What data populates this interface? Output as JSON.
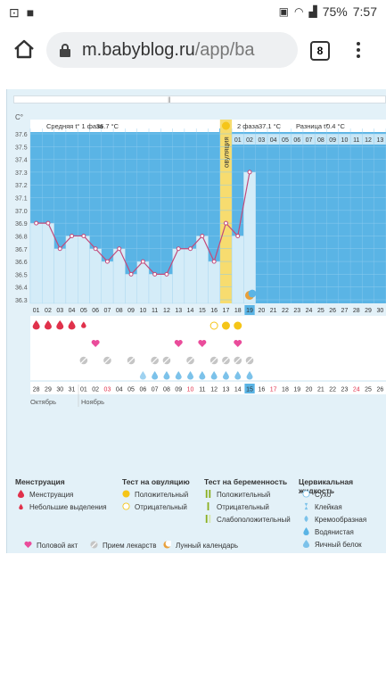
{
  "status": {
    "battery": "75%",
    "time": "7:57"
  },
  "browser": {
    "url_host": "m.babyblog.ru",
    "url_path": "/app/ba",
    "tab_count": "8"
  },
  "chart": {
    "y_unit": "C°",
    "phase1_label": "Средняя t° 1 фаза",
    "phase1_value": "36.7 °C",
    "phase2_label": "2 фаза",
    "phase2_value": "37.1 °C",
    "diff_label": "Разница t°",
    "diff_value": "0.4 °C",
    "ovulation_label": "овуляция",
    "month1": "Октябрь",
    "month2": "Ноябрь"
  },
  "chart_data": {
    "type": "line",
    "y_ticks": [
      "37.6",
      "37.5",
      "37.4",
      "37.3",
      "37.2",
      "37.1",
      "37.0",
      "36.9",
      "36.8",
      "36.7",
      "36.6",
      "36.5",
      "36.4",
      "36.3"
    ],
    "ylim": [
      36.3,
      37.6
    ],
    "cycle_days": [
      "01",
      "02",
      "03",
      "04",
      "05",
      "06",
      "07",
      "08",
      "09",
      "10",
      "11",
      "12",
      "13",
      "14",
      "15",
      "16",
      "17",
      "18",
      "19",
      "20",
      "21",
      "22",
      "23",
      "24",
      "25",
      "26",
      "27",
      "28",
      "29",
      "30"
    ],
    "phase2_days": [
      "01",
      "02",
      "03",
      "04",
      "05",
      "06",
      "07",
      "08",
      "09",
      "10",
      "11",
      "12",
      "13"
    ],
    "calendar_dates": [
      "28",
      "29",
      "30",
      "31",
      "01",
      "02",
      "03",
      "04",
      "05",
      "06",
      "07",
      "08",
      "09",
      "10",
      "11",
      "12",
      "13",
      "14",
      "15",
      "16",
      "17",
      "18",
      "19",
      "20",
      "21",
      "22",
      "23",
      "24",
      "25",
      "26"
    ],
    "calendar_red": [
      "03",
      "10",
      "17",
      "24"
    ],
    "temperatures": [
      36.9,
      36.9,
      36.7,
      36.8,
      36.8,
      36.7,
      36.6,
      36.7,
      36.5,
      36.6,
      36.5,
      36.5,
      36.7,
      36.7,
      36.8,
      36.6,
      36.9,
      36.8,
      37.3
    ],
    "ovulation_day": 17,
    "current_day": 19
  },
  "legend": {
    "menstruation": {
      "title": "Менструация",
      "items": [
        "Менструация",
        "Небольшие выделения"
      ]
    },
    "ovulation_test": {
      "title": "Тест на овуляцию",
      "items": [
        "Положительный",
        "Отрицательный"
      ]
    },
    "pregnancy_test": {
      "title": "Тест на беременность",
      "items": [
        "Положительный",
        "Отрицательный",
        "Слабоположительный"
      ]
    },
    "cervical": {
      "title": "Цервикальная жидкость",
      "items": [
        "Сухо",
        "Клейкая",
        "Кремообразная",
        "Водянистая",
        "Яичный белок"
      ]
    },
    "extra": [
      "Половой акт",
      "Прием лекарств",
      "Лунный календарь"
    ]
  },
  "colors": {
    "sky": "#5ab4e5",
    "band": "#d4ecf8",
    "line": "#c24a7b",
    "ovulation": "#f7dc6f",
    "blood": "#e0314b",
    "heart": "#ea4c9b",
    "moon": "#e8a03b"
  }
}
